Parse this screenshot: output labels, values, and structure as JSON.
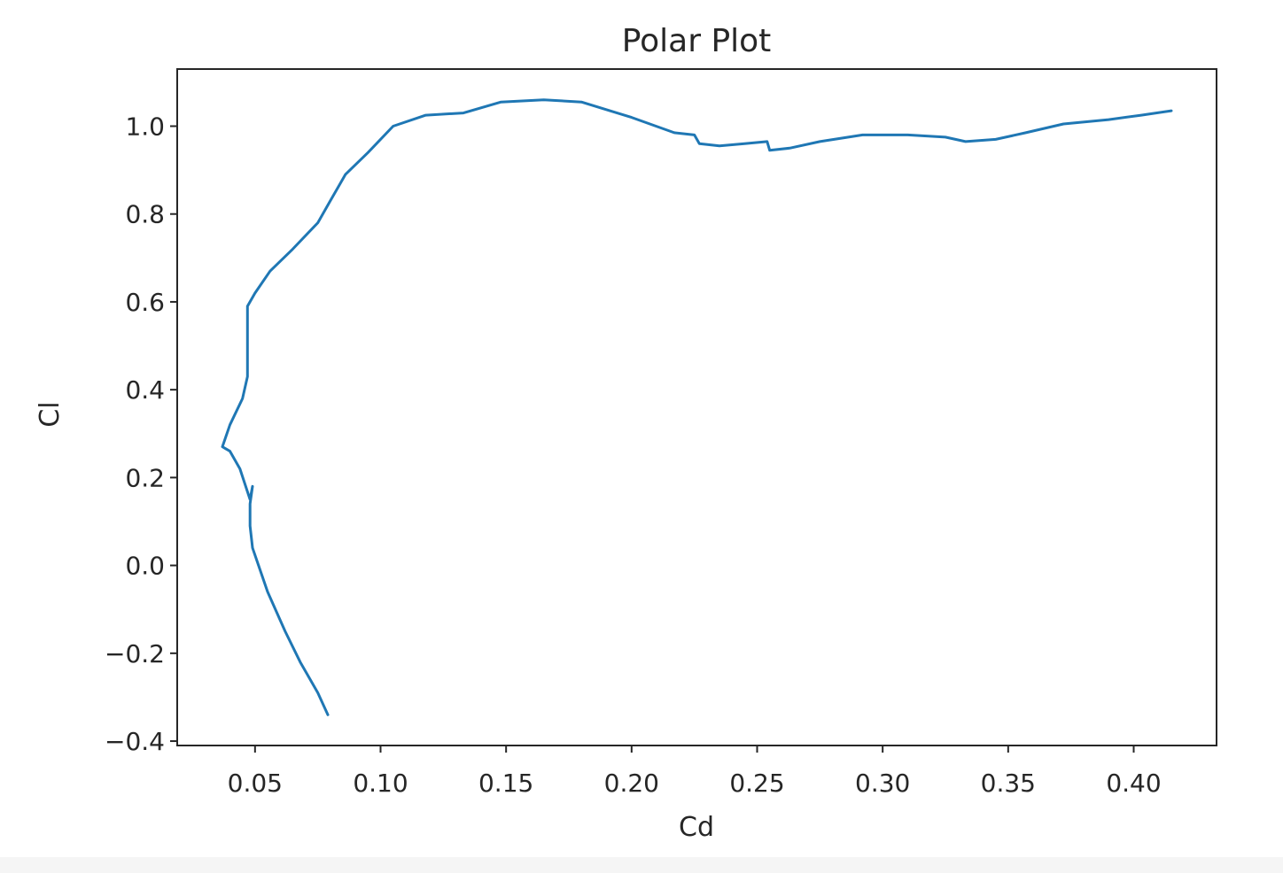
{
  "chart_data": {
    "type": "line",
    "title": "Polar Plot",
    "xlabel": "Cd",
    "ylabel": "Cl",
    "xlim": [
      0.019,
      0.433
    ],
    "ylim": [
      -0.41,
      1.13
    ],
    "xticks": [
      0.05,
      0.1,
      0.15,
      0.2,
      0.25,
      0.3,
      0.35,
      0.4
    ],
    "xtick_labels": [
      "0.05",
      "0.10",
      "0.15",
      "0.20",
      "0.25",
      "0.30",
      "0.35",
      "0.40"
    ],
    "yticks": [
      -0.4,
      -0.2,
      0.0,
      0.2,
      0.4,
      0.6,
      0.8,
      1.0
    ],
    "ytick_labels": [
      "−0.4",
      "−0.2",
      "0.0",
      "0.2",
      "0.4",
      "0.6",
      "0.8",
      "1.0"
    ],
    "grid": false,
    "legend": false,
    "series": [
      {
        "color": "#1f77b4",
        "x": [
          0.079,
          0.075,
          0.068,
          0.062,
          0.055,
          0.049,
          0.048,
          0.048,
          0.049,
          0.048,
          0.044,
          0.04,
          0.037,
          0.04,
          0.045,
          0.047,
          0.047,
          0.047,
          0.05,
          0.056,
          0.065,
          0.075,
          0.08,
          0.086,
          0.095,
          0.105,
          0.118,
          0.133,
          0.148,
          0.165,
          0.18,
          0.2,
          0.217,
          0.225,
          0.227,
          0.235,
          0.245,
          0.254,
          0.255,
          0.263,
          0.275,
          0.292,
          0.31,
          0.325,
          0.333,
          0.345,
          0.357,
          0.372,
          0.39,
          0.403,
          0.415
        ],
        "y": [
          -0.34,
          -0.29,
          -0.22,
          -0.15,
          -0.06,
          0.04,
          0.09,
          0.14,
          0.18,
          0.15,
          0.22,
          0.26,
          0.27,
          0.32,
          0.38,
          0.43,
          0.52,
          0.59,
          0.62,
          0.67,
          0.72,
          0.78,
          0.83,
          0.89,
          0.94,
          1.0,
          1.025,
          1.03,
          1.055,
          1.06,
          1.055,
          1.02,
          0.985,
          0.98,
          0.96,
          0.955,
          0.96,
          0.965,
          0.945,
          0.95,
          0.965,
          0.98,
          0.98,
          0.975,
          0.965,
          0.97,
          0.985,
          1.005,
          1.015,
          1.025,
          1.035
        ]
      }
    ]
  }
}
